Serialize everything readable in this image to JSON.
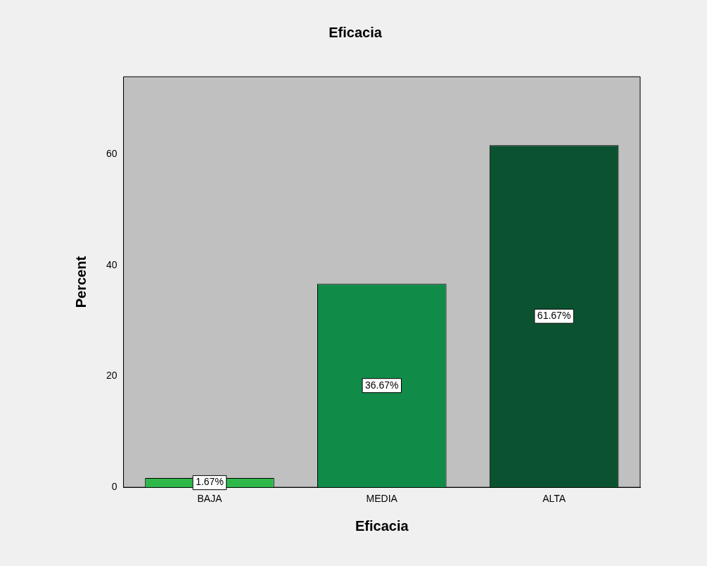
{
  "chart_data": {
    "type": "bar",
    "title": "Eficacia",
    "xlabel": "Eficacia",
    "ylabel": "Percent",
    "categories": [
      "BAJA",
      "MEDIA",
      "ALTA"
    ],
    "values": [
      1.67,
      36.67,
      61.67
    ],
    "colors": [
      "#2fb84a",
      "#108c48",
      "#0b5330"
    ],
    "value_labels": [
      "1.67%",
      "36.67%",
      "61.67%"
    ],
    "ylim": [
      0,
      74
    ],
    "yticks": [
      0,
      20,
      40,
      60
    ],
    "grid": false,
    "legend": false
  }
}
